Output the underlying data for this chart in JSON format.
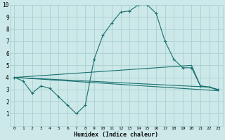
{
  "xlabel": "Humidex (Indice chaleur)",
  "xlim": [
    -0.5,
    23.5
  ],
  "ylim": [
    0,
    10
  ],
  "xticks": [
    0,
    1,
    2,
    3,
    4,
    5,
    6,
    7,
    8,
    9,
    10,
    11,
    12,
    13,
    14,
    15,
    16,
    17,
    18,
    19,
    20,
    21,
    22,
    23
  ],
  "yticks": [
    1,
    2,
    3,
    4,
    5,
    6,
    7,
    8,
    9,
    10
  ],
  "bg_color": "#cce8e8",
  "grid_color": "#aad0d0",
  "line_color": "#1a7070",
  "curves": [
    {
      "x": [
        0,
        1,
        2,
        3,
        4,
        5,
        6,
        7,
        8,
        9,
        10,
        11,
        12,
        13,
        14,
        15,
        16,
        17,
        18,
        19,
        20,
        21,
        22,
        23
      ],
      "y": [
        4.0,
        3.7,
        2.7,
        3.3,
        3.1,
        2.4,
        1.7,
        1.0,
        1.7,
        5.5,
        7.5,
        8.5,
        9.4,
        9.5,
        10.0,
        10.0,
        9.3,
        7.0,
        5.5,
        4.8,
        4.8,
        3.3,
        3.2,
        3.0
      ],
      "marker": "+"
    },
    {
      "x": [
        0,
        20,
        21,
        22,
        23
      ],
      "y": [
        4.0,
        5.0,
        3.3,
        3.2,
        3.0
      ],
      "marker": null
    },
    {
      "x": [
        0,
        22,
        23
      ],
      "y": [
        4.0,
        3.2,
        2.95
      ],
      "marker": null
    },
    {
      "x": [
        0,
        23
      ],
      "y": [
        4.0,
        2.9
      ],
      "marker": null
    }
  ],
  "figsize": [
    3.2,
    2.0
  ],
  "dpi": 100
}
